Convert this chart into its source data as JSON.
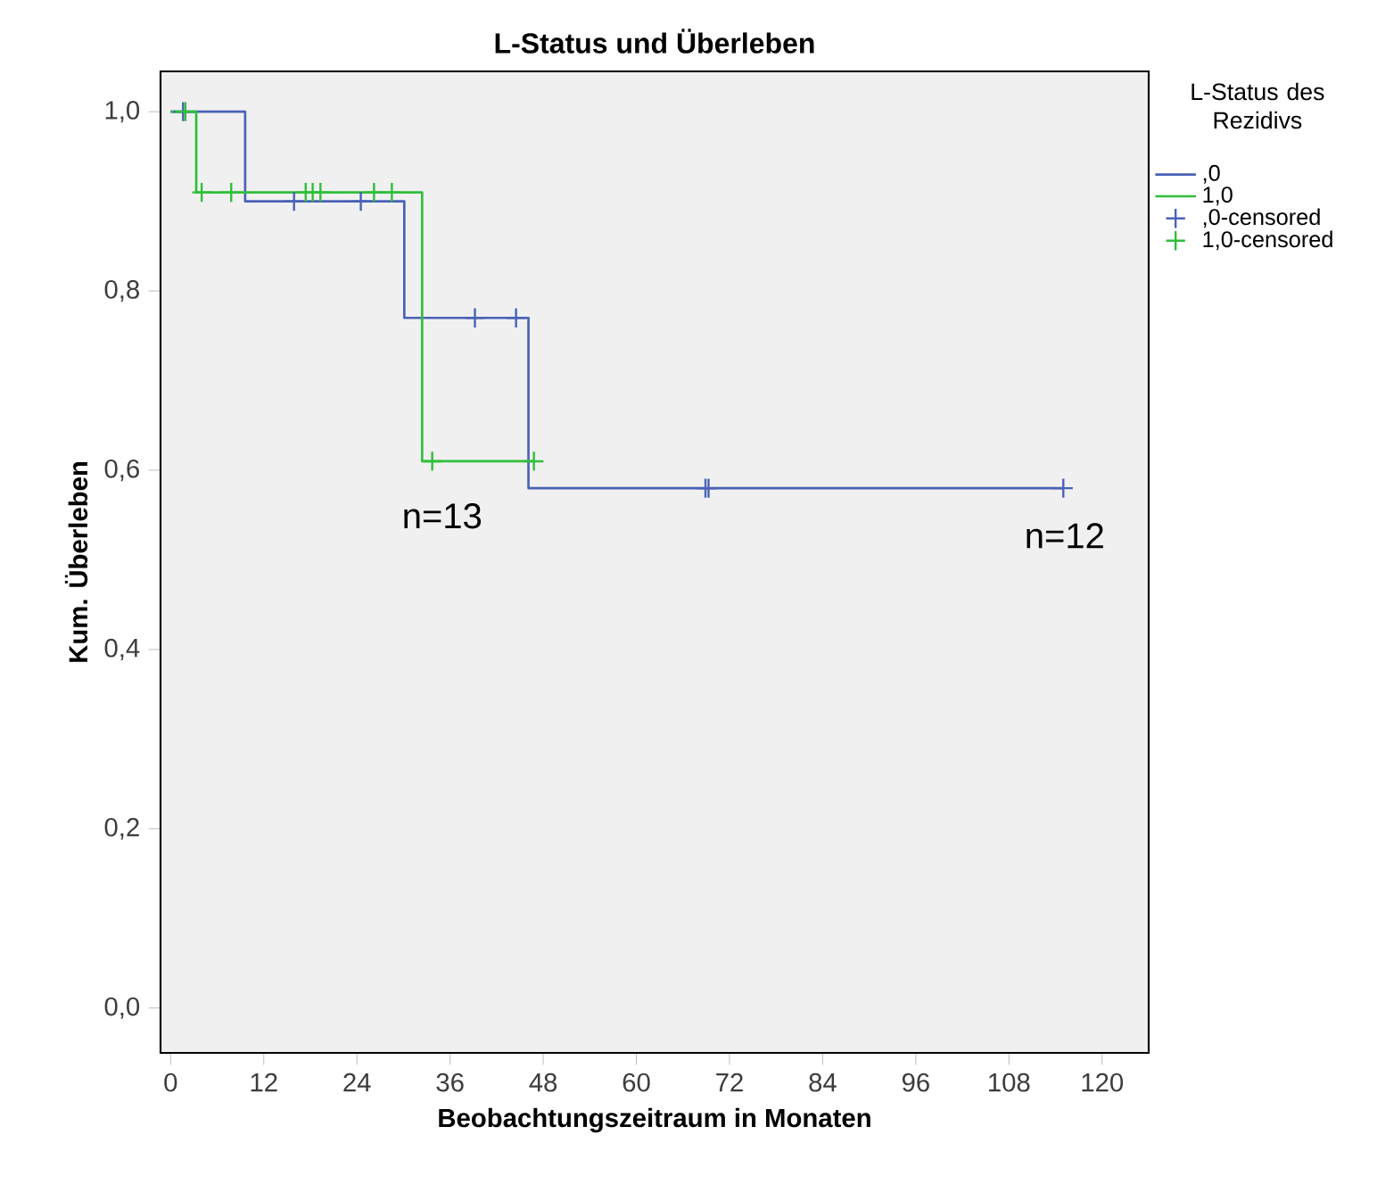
{
  "chart_data": {
    "type": "step",
    "title": "L-Status und Überleben",
    "xlabel": "Beobachtungszeitraum in Monaten",
    "ylabel": "Kum. Überleben",
    "legend_title": "L-Status des Rezidivs",
    "legend": "right",
    "grid": false,
    "xlim": [
      -1.3,
      126
    ],
    "xticks": [
      0,
      12,
      24,
      36,
      48,
      60,
      72,
      84,
      96,
      108,
      120
    ],
    "ylim": [
      -0.05,
      1.045
    ],
    "yticks": [
      {
        "value": 0,
        "label": "0,0"
      },
      {
        "value": 0.2,
        "label": "0,2"
      },
      {
        "value": 0.4,
        "label": "0,4"
      },
      {
        "value": 0.6,
        "label": "0,6"
      },
      {
        "value": 0.8,
        "label": "0,8"
      },
      {
        "value": 1,
        "label": "1,0"
      }
    ],
    "series": [
      {
        "name": ",0",
        "color": "#4a62b6",
        "x": [
          0,
          9.6,
          30.1,
          46.1,
          115
        ],
        "values": [
          1,
          0.9,
          0.77,
          0.58,
          0.58
        ]
      },
      {
        "name": "1,0",
        "color": "#2fbf3a",
        "x": [
          0,
          3.3,
          32.4,
          46.8
        ],
        "values": [
          1,
          0.91,
          0.61,
          0.61
        ]
      },
      {
        "name": ",0-censored",
        "type": "scatter",
        "marker": "cross",
        "color": "#4a62b6",
        "x": [
          1.6,
          15.9,
          24.5,
          39.2,
          44.5,
          68.9,
          69.3,
          115
        ],
        "values": [
          1,
          0.9,
          0.9,
          0.77,
          0.77,
          0.58,
          0.58,
          0.58
        ]
      },
      {
        "name": "1,0-censored",
        "type": "scatter",
        "marker": "cross",
        "color": "#2fbf3a",
        "x": [
          1.9,
          4.0,
          7.8,
          17.4,
          18.3,
          19.3,
          26.2,
          28.5,
          33.7,
          46.8
        ],
        "values": [
          1,
          0.91,
          0.91,
          0.91,
          0.91,
          0.91,
          0.91,
          0.91,
          0.61,
          0.61
        ]
      }
    ],
    "annotations": [
      "n=13",
      "n=12"
    ]
  }
}
